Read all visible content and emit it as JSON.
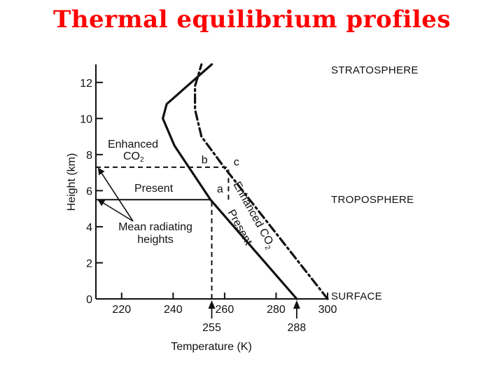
{
  "slide_title": "Thermal equilibrium profiles",
  "colors": {
    "title": "#ff0000",
    "ink": "#111111"
  },
  "chart_data": {
    "type": "line",
    "xlabel": "Temperature (K)",
    "ylabel": "Height (km)",
    "xlim": [
      210,
      300
    ],
    "ylim": [
      0,
      13
    ],
    "x_ticks": [
      220,
      240,
      260,
      280,
      300
    ],
    "y_ticks": [
      0,
      2,
      4,
      6,
      8,
      10,
      12
    ],
    "grid": false,
    "series": [
      {
        "name": "Present",
        "style": "solid",
        "points": [
          [
            288,
            0
          ],
          [
            254.5,
            5.5
          ],
          [
            240.5,
            8.5
          ],
          [
            236,
            10
          ],
          [
            237.5,
            10.8
          ],
          [
            255,
            13
          ]
        ]
      },
      {
        "name": "Enhanced CO2",
        "style": "dash-dot",
        "points": [
          [
            300,
            0
          ],
          [
            283.5,
            3
          ],
          [
            259.8,
            7.3
          ],
          [
            251,
            9
          ],
          [
            248.5,
            10.5
          ],
          [
            248.5,
            11.8
          ],
          [
            251,
            13
          ]
        ]
      }
    ],
    "reference_lines": [
      {
        "y": 7.3,
        "x_from": 210,
        "x_to": 261.5,
        "style": "dashed"
      },
      {
        "y": 5.5,
        "x_from": 210,
        "x_to": 254.5,
        "style": "solid"
      },
      {
        "x": 255,
        "y_from": 0,
        "y_to": 5.5,
        "style": "dashed"
      },
      {
        "x": 261.5,
        "y_from": 5.5,
        "y_to": 7.3,
        "style": "dashed"
      }
    ],
    "point_labels": [
      {
        "text": "a",
        "x": 257,
        "y": 5.9
      },
      {
        "text": "b",
        "x": 251,
        "y": 7.5
      },
      {
        "text": "c",
        "x": 263.5,
        "y": 7.4
      }
    ],
    "line_labels": {
      "enhanced": "Enhanced CO",
      "enhanced_sub": "2",
      "present": "Present"
    },
    "annotations": {
      "enhanced_co2_line1": "Enhanced",
      "enhanced_co2_line2": "CO",
      "enhanced_co2_sub": "2",
      "present": "Present",
      "mean_radiating_line1": "Mean radiating",
      "mean_radiating_line2": "heights"
    },
    "regions": [
      "STRATOSPHERE",
      "TROPOSPHERE",
      "SURFACE"
    ],
    "arrow_markers": [
      {
        "value": 255,
        "label": "255"
      },
      {
        "value": 288,
        "label": "288"
      }
    ]
  }
}
